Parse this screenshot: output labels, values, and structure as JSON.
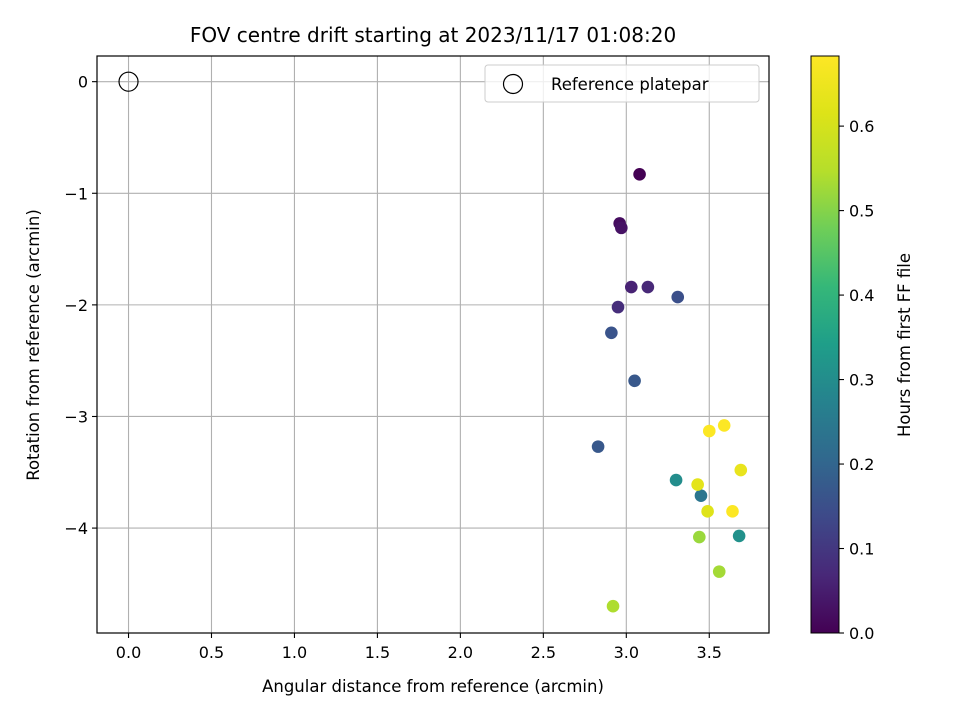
{
  "chart_data": {
    "type": "scatter",
    "title": "FOV centre drift starting at 2023/11/17 01:08:20",
    "xlabel": "Angular distance from reference (arcmin)",
    "ylabel": "Rotation from reference (arcmin)",
    "xlim": [
      -0.19,
      3.86
    ],
    "ylim": [
      -4.94,
      0.23
    ],
    "xticks": [
      0.0,
      0.5,
      1.0,
      1.5,
      2.0,
      2.5,
      3.0,
      3.5
    ],
    "xtick_labels": [
      "0.0",
      "0.5",
      "1.0",
      "1.5",
      "2.0",
      "2.5",
      "3.0",
      "3.5"
    ],
    "yticks": [
      0,
      -1,
      -2,
      -3,
      -4
    ],
    "ytick_labels": [
      "0",
      "−1",
      "−2",
      "−3",
      "−4"
    ],
    "grid": true,
    "legend": {
      "position": "top-right",
      "entries": [
        "Reference platepar"
      ]
    },
    "reference_point": {
      "x": 0.0,
      "y": 0.0
    },
    "colorbar": {
      "label": "Hours from first FF file",
      "colormap": "viridis",
      "range": [
        0.0,
        0.683
      ],
      "ticks": [
        0.0,
        0.1,
        0.2,
        0.3,
        0.4,
        0.5,
        0.6
      ],
      "tick_labels": [
        "0.0",
        "0.1",
        "0.2",
        "0.3",
        "0.4",
        "0.5",
        "0.6"
      ]
    },
    "points": [
      {
        "x": 3.08,
        "y": -0.83,
        "c": 0.0
      },
      {
        "x": 2.96,
        "y": -1.27,
        "c": 0.02
      },
      {
        "x": 2.97,
        "y": -1.31,
        "c": 0.03
      },
      {
        "x": 3.03,
        "y": -1.84,
        "c": 0.06
      },
      {
        "x": 3.13,
        "y": -1.84,
        "c": 0.07
      },
      {
        "x": 2.95,
        "y": -2.02,
        "c": 0.08
      },
      {
        "x": 3.31,
        "y": -1.93,
        "c": 0.15
      },
      {
        "x": 2.91,
        "y": -2.25,
        "c": 0.16
      },
      {
        "x": 3.05,
        "y": -2.68,
        "c": 0.17
      },
      {
        "x": 2.83,
        "y": -3.27,
        "c": 0.17
      },
      {
        "x": 3.45,
        "y": -3.71,
        "c": 0.24
      },
      {
        "x": 3.3,
        "y": -3.57,
        "c": 0.3
      },
      {
        "x": 3.68,
        "y": -4.07,
        "c": 0.31
      },
      {
        "x": 3.44,
        "y": -4.08,
        "c": 0.52
      },
      {
        "x": 3.56,
        "y": -4.39,
        "c": 0.53
      },
      {
        "x": 2.92,
        "y": -4.7,
        "c": 0.54
      },
      {
        "x": 3.49,
        "y": -3.85,
        "c": 0.62
      },
      {
        "x": 3.43,
        "y": -3.61,
        "c": 0.63
      },
      {
        "x": 3.69,
        "y": -3.48,
        "c": 0.64
      },
      {
        "x": 3.5,
        "y": -3.13,
        "c": 0.68
      },
      {
        "x": 3.59,
        "y": -3.08,
        "c": 0.68
      },
      {
        "x": 3.64,
        "y": -3.85,
        "c": 0.68
      }
    ]
  }
}
